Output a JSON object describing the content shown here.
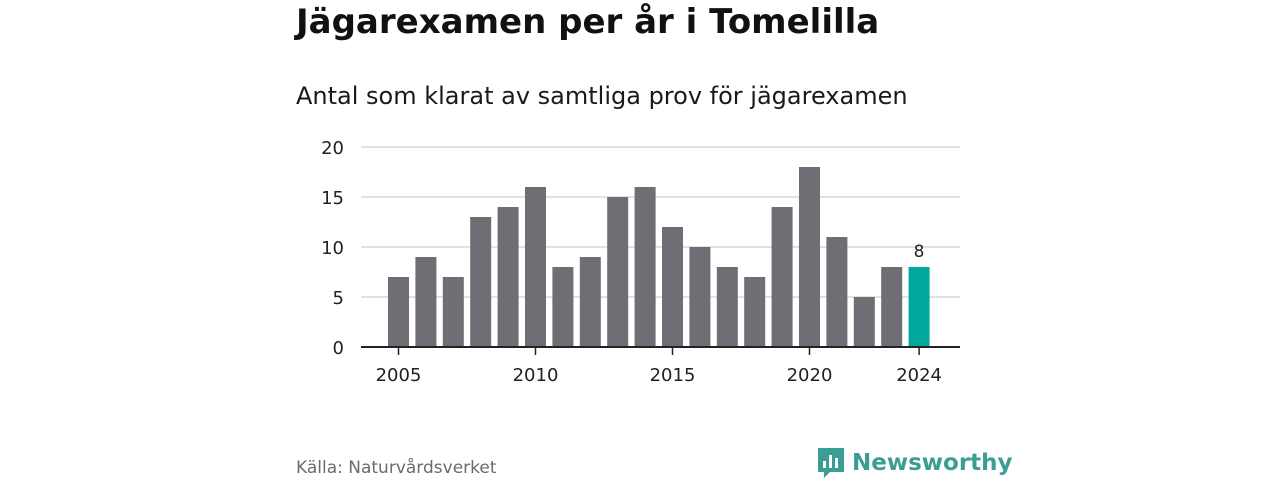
{
  "chart_data": {
    "type": "bar",
    "title": "Jägarexamen per år i Tomelilla",
    "subtitle": "Antal som klarat av samtliga prov för jägarexamen",
    "x": [
      2005,
      2006,
      2007,
      2008,
      2009,
      2010,
      2011,
      2012,
      2013,
      2014,
      2015,
      2016,
      2017,
      2018,
      2019,
      2020,
      2021,
      2022,
      2023,
      2024
    ],
    "values": [
      7,
      9,
      7,
      13,
      14,
      16,
      8,
      9,
      15,
      16,
      12,
      10,
      8,
      7,
      14,
      18,
      11,
      5,
      8,
      8
    ],
    "x_ticks": [
      2005,
      2010,
      2015,
      2020,
      2024
    ],
    "y_ticks": [
      0,
      5,
      10,
      15,
      20
    ],
    "ylim": [
      0,
      20
    ],
    "grid": "horizontal",
    "highlight": {
      "x": 2024,
      "label": "8"
    },
    "colors": {
      "bar": "#6e6e74",
      "highlight": "#00a99d",
      "grid": "#d9d9d9",
      "axis": "#222222"
    }
  },
  "footer": {
    "source": "Källa: Naturvårdsverket",
    "brand": "Newsworthy",
    "brand_icon": "bar-chart-speech-icon",
    "brand_color": "#3a9e94"
  }
}
